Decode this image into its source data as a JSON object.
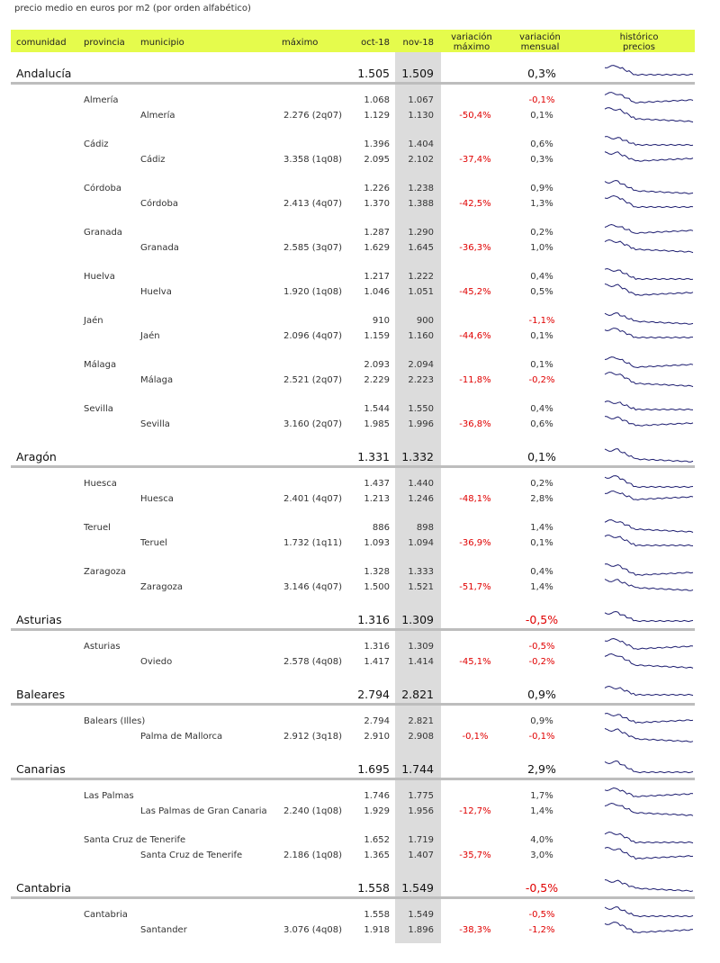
{
  "header": {
    "title": "precio medio en euros por m2 (por orden alfabético)"
  },
  "table": {
    "columns": [
      "comunidad",
      "provincia",
      "municipio",
      "máximo",
      "oct-18",
      "nov-18",
      "variación máximo",
      "variación mensual",
      "histórico precios"
    ],
    "groups": [
      {
        "name": "Andalucía",
        "oct": "1.505",
        "nov": "1.509",
        "mensual": "0,3%",
        "rows": [
          {
            "provincia": {
              "name": "Almería",
              "oct": "1.068",
              "nov": "1.067",
              "mensual": "-0,1%"
            },
            "municipio": {
              "name": "Almería",
              "maximo": "2.276 (2q07)",
              "oct": "1.129",
              "nov": "1.130",
              "var_maximo": "-50,4%",
              "mensual": "0,1%"
            }
          },
          {
            "provincia": {
              "name": "Cádiz",
              "oct": "1.396",
              "nov": "1.404",
              "mensual": "0,6%"
            },
            "municipio": {
              "name": "Cádiz",
              "maximo": "3.358 (1q08)",
              "oct": "2.095",
              "nov": "2.102",
              "var_maximo": "-37,4%",
              "mensual": "0,3%"
            }
          },
          {
            "provincia": {
              "name": "Córdoba",
              "oct": "1.226",
              "nov": "1.238",
              "mensual": "0,9%"
            },
            "municipio": {
              "name": "Córdoba",
              "maximo": "2.413 (4q07)",
              "oct": "1.370",
              "nov": "1.388",
              "var_maximo": "-42,5%",
              "mensual": "1,3%"
            }
          },
          {
            "provincia": {
              "name": "Granada",
              "oct": "1.287",
              "nov": "1.290",
              "mensual": "0,2%"
            },
            "municipio": {
              "name": "Granada",
              "maximo": "2.585 (3q07)",
              "oct": "1.629",
              "nov": "1.645",
              "var_maximo": "-36,3%",
              "mensual": "1,0%"
            }
          },
          {
            "provincia": {
              "name": "Huelva",
              "oct": "1.217",
              "nov": "1.222",
              "mensual": "0,4%"
            },
            "municipio": {
              "name": "Huelva",
              "maximo": "1.920 (1q08)",
              "oct": "1.046",
              "nov": "1.051",
              "var_maximo": "-45,2%",
              "mensual": "0,5%"
            }
          },
          {
            "provincia": {
              "name": "Jaén",
              "oct": "910",
              "nov": "900",
              "mensual": "-1,1%"
            },
            "municipio": {
              "name": "Jaén",
              "maximo": "2.096 (4q07)",
              "oct": "1.159",
              "nov": "1.160",
              "var_maximo": "-44,6%",
              "mensual": "0,1%"
            }
          },
          {
            "provincia": {
              "name": "Málaga",
              "oct": "2.093",
              "nov": "2.094",
              "mensual": "0,1%"
            },
            "municipio": {
              "name": "Málaga",
              "maximo": "2.521 (2q07)",
              "oct": "2.229",
              "nov": "2.223",
              "var_maximo": "-11,8%",
              "mensual": "-0,2%"
            }
          },
          {
            "provincia": {
              "name": "Sevilla",
              "oct": "1.544",
              "nov": "1.550",
              "mensual": "0,4%"
            },
            "municipio": {
              "name": "Sevilla",
              "maximo": "3.160 (2q07)",
              "oct": "1.985",
              "nov": "1.996",
              "var_maximo": "-36,8%",
              "mensual": "0,6%"
            }
          }
        ]
      },
      {
        "name": "Aragón",
        "oct": "1.331",
        "nov": "1.332",
        "mensual": "0,1%",
        "rows": [
          {
            "provincia": {
              "name": "Huesca",
              "oct": "1.437",
              "nov": "1.440",
              "mensual": "0,2%"
            },
            "municipio": {
              "name": "Huesca",
              "maximo": "2.401 (4q07)",
              "oct": "1.213",
              "nov": "1.246",
              "var_maximo": "-48,1%",
              "mensual": "2,8%"
            }
          },
          {
            "provincia": {
              "name": "Teruel",
              "oct": "886",
              "nov": "898",
              "mensual": "1,4%"
            },
            "municipio": {
              "name": "Teruel",
              "maximo": "1.732 (1q11)",
              "oct": "1.093",
              "nov": "1.094",
              "var_maximo": "-36,9%",
              "mensual": "0,1%"
            }
          },
          {
            "provincia": {
              "name": "Zaragoza",
              "oct": "1.328",
              "nov": "1.333",
              "mensual": "0,4%"
            },
            "municipio": {
              "name": "Zaragoza",
              "maximo": "3.146 (4q07)",
              "oct": "1.500",
              "nov": "1.521",
              "var_maximo": "-51,7%",
              "mensual": "1,4%"
            }
          }
        ]
      },
      {
        "name": "Asturias",
        "oct": "1.316",
        "nov": "1.309",
        "mensual": "-0,5%",
        "rows": [
          {
            "provincia": {
              "name": "Asturias",
              "oct": "1.316",
              "nov": "1.309",
              "mensual": "-0,5%"
            },
            "municipio": {
              "name": "Oviedo",
              "maximo": "2.578 (4q08)",
              "oct": "1.417",
              "nov": "1.414",
              "var_maximo": "-45,1%",
              "mensual": "-0,2%"
            }
          }
        ]
      },
      {
        "name": "Baleares",
        "oct": "2.794",
        "nov": "2.821",
        "mensual": "0,9%",
        "rows": [
          {
            "provincia": {
              "name": "Balears (Illes)",
              "oct": "2.794",
              "nov": "2.821",
              "mensual": "0,9%"
            },
            "municipio": {
              "name": "Palma de Mallorca",
              "maximo": "2.912 (3q18)",
              "oct": "2.910",
              "nov": "2.908",
              "var_maximo": "-0,1%",
              "mensual": "-0,1%"
            }
          }
        ]
      },
      {
        "name": "Canarias",
        "oct": "1.695",
        "nov": "1.744",
        "mensual": "2,9%",
        "rows": [
          {
            "provincia": {
              "name": "Las Palmas",
              "oct": "1.746",
              "nov": "1.775",
              "mensual": "1,7%"
            },
            "municipio": {
              "name": "Las Palmas de Gran Canaria",
              "maximo": "2.240 (1q08)",
              "oct": "1.929",
              "nov": "1.956",
              "var_maximo": "-12,7%",
              "mensual": "1,4%"
            }
          },
          {
            "provincia": {
              "name": "Santa Cruz de Tenerife",
              "oct": "1.652",
              "nov": "1.719",
              "mensual": "4,0%"
            },
            "municipio": {
              "name": "Santa Cruz de Tenerife",
              "maximo": "2.186 (1q08)",
              "oct": "1.365",
              "nov": "1.407",
              "var_maximo": "-35,7%",
              "mensual": "3,0%"
            }
          }
        ]
      },
      {
        "name": "Cantabria",
        "oct": "1.558",
        "nov": "1.549",
        "mensual": "-0,5%",
        "rows": [
          {
            "provincia": {
              "name": "Cantabria",
              "oct": "1.558",
              "nov": "1.549",
              "mensual": "-0,5%"
            },
            "municipio": {
              "name": "Santander",
              "maximo": "3.076 (4q08)",
              "oct": "1.918",
              "nov": "1.896",
              "var_maximo": "-38,3%",
              "mensual": "-1,2%"
            }
          }
        ]
      }
    ]
  }
}
